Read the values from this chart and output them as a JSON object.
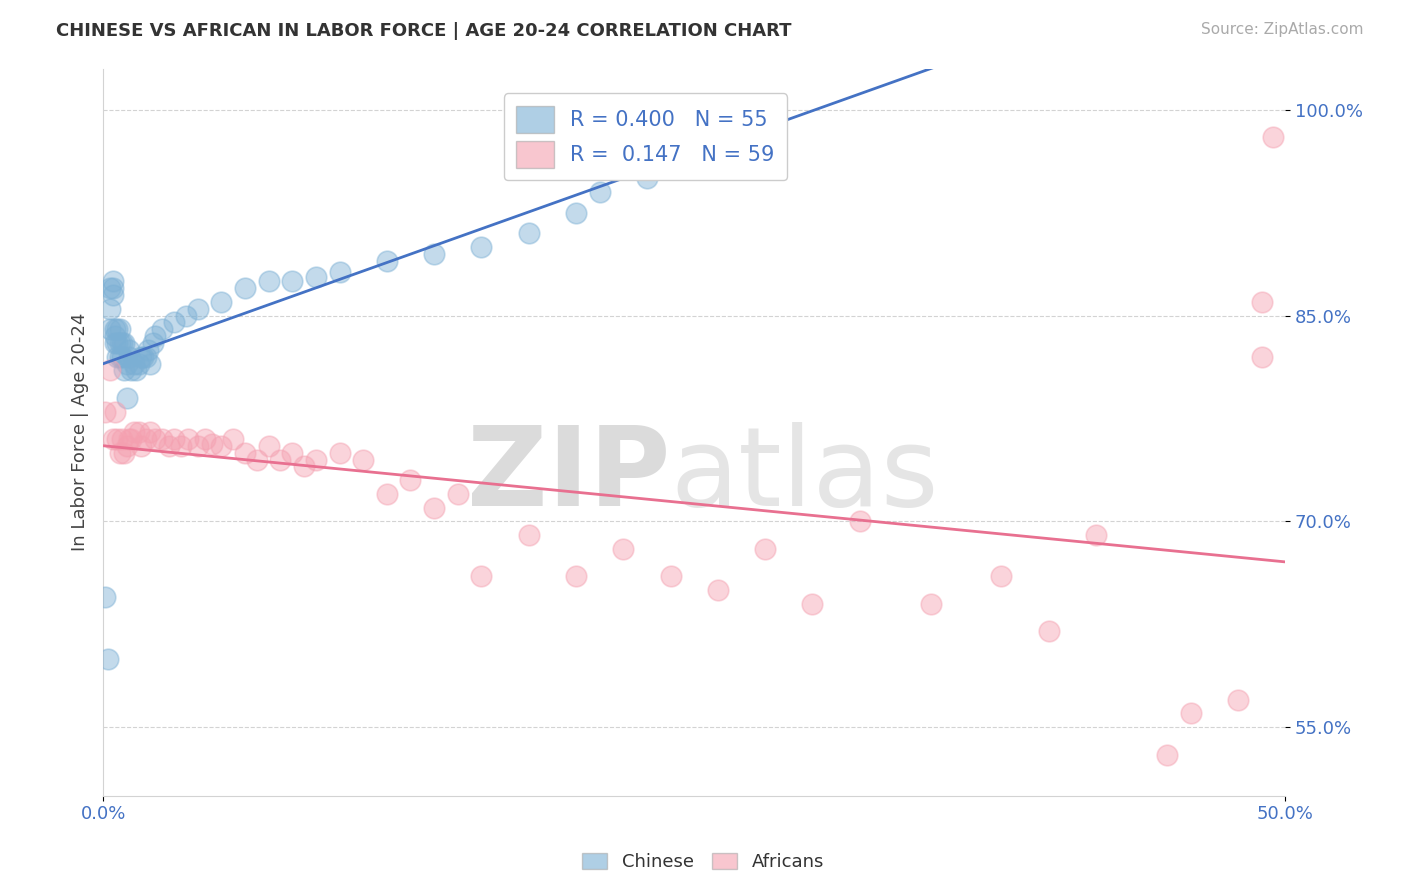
{
  "title": "CHINESE VS AFRICAN IN LABOR FORCE | AGE 20-24 CORRELATION CHART",
  "source": "Source: ZipAtlas.com",
  "ylabel": "In Labor Force | Age 20-24",
  "xlim": [
    0.0,
    0.5
  ],
  "ylim": [
    0.5,
    1.03
  ],
  "xtick_vals": [
    0.0,
    0.5
  ],
  "xtick_labels": [
    "0.0%",
    "50.0%"
  ],
  "ytick_vals": [
    0.55,
    0.7,
    0.85,
    1.0
  ],
  "ytick_labels": [
    "55.0%",
    "70.0%",
    "85.0%",
    "100.0%"
  ],
  "grid_lines": [
    0.55,
    0.7,
    0.85,
    1.0
  ],
  "chinese_R": 0.4,
  "chinese_N": 55,
  "african_R": 0.147,
  "african_N": 59,
  "chinese_color": "#7BAFD4",
  "african_color": "#F4A0B0",
  "chinese_line_color": "#4472C4",
  "african_line_color": "#E87090",
  "background_color": "#FFFFFF",
  "chinese_x": [
    0.001,
    0.002,
    0.003,
    0.003,
    0.003,
    0.004,
    0.004,
    0.004,
    0.005,
    0.005,
    0.005,
    0.006,
    0.006,
    0.006,
    0.007,
    0.007,
    0.007,
    0.008,
    0.008,
    0.009,
    0.009,
    0.01,
    0.01,
    0.011,
    0.011,
    0.012,
    0.013,
    0.014,
    0.015,
    0.016,
    0.017,
    0.018,
    0.019,
    0.02,
    0.021,
    0.022,
    0.025,
    0.03,
    0.035,
    0.04,
    0.05,
    0.06,
    0.07,
    0.08,
    0.09,
    0.1,
    0.12,
    0.14,
    0.16,
    0.18,
    0.2,
    0.21,
    0.23,
    0.24,
    0.25
  ],
  "chinese_y": [
    0.645,
    0.6,
    0.84,
    0.855,
    0.87,
    0.865,
    0.87,
    0.875,
    0.83,
    0.835,
    0.84,
    0.82,
    0.83,
    0.84,
    0.82,
    0.83,
    0.84,
    0.82,
    0.83,
    0.81,
    0.83,
    0.79,
    0.815,
    0.82,
    0.825,
    0.81,
    0.815,
    0.81,
    0.815,
    0.82,
    0.82,
    0.82,
    0.825,
    0.815,
    0.83,
    0.835,
    0.84,
    0.845,
    0.85,
    0.855,
    0.86,
    0.87,
    0.875,
    0.875,
    0.878,
    0.882,
    0.89,
    0.895,
    0.9,
    0.91,
    0.925,
    0.94,
    0.95,
    0.96,
    0.985
  ],
  "african_x": [
    0.001,
    0.003,
    0.004,
    0.005,
    0.006,
    0.007,
    0.008,
    0.009,
    0.01,
    0.011,
    0.012,
    0.013,
    0.015,
    0.016,
    0.018,
    0.02,
    0.022,
    0.025,
    0.028,
    0.03,
    0.033,
    0.036,
    0.04,
    0.043,
    0.046,
    0.05,
    0.055,
    0.06,
    0.065,
    0.07,
    0.075,
    0.08,
    0.085,
    0.09,
    0.1,
    0.11,
    0.12,
    0.13,
    0.14,
    0.15,
    0.16,
    0.18,
    0.2,
    0.22,
    0.24,
    0.26,
    0.28,
    0.3,
    0.32,
    0.35,
    0.38,
    0.4,
    0.42,
    0.45,
    0.46,
    0.48,
    0.49,
    0.49,
    0.495
  ],
  "african_y": [
    0.78,
    0.81,
    0.76,
    0.78,
    0.76,
    0.75,
    0.76,
    0.75,
    0.755,
    0.76,
    0.76,
    0.765,
    0.765,
    0.755,
    0.76,
    0.765,
    0.76,
    0.76,
    0.755,
    0.76,
    0.755,
    0.76,
    0.755,
    0.76,
    0.756,
    0.755,
    0.76,
    0.75,
    0.745,
    0.755,
    0.745,
    0.75,
    0.74,
    0.745,
    0.75,
    0.745,
    0.72,
    0.73,
    0.71,
    0.72,
    0.66,
    0.69,
    0.66,
    0.68,
    0.66,
    0.65,
    0.68,
    0.64,
    0.7,
    0.64,
    0.66,
    0.62,
    0.69,
    0.53,
    0.56,
    0.57,
    0.82,
    0.86,
    0.98
  ]
}
